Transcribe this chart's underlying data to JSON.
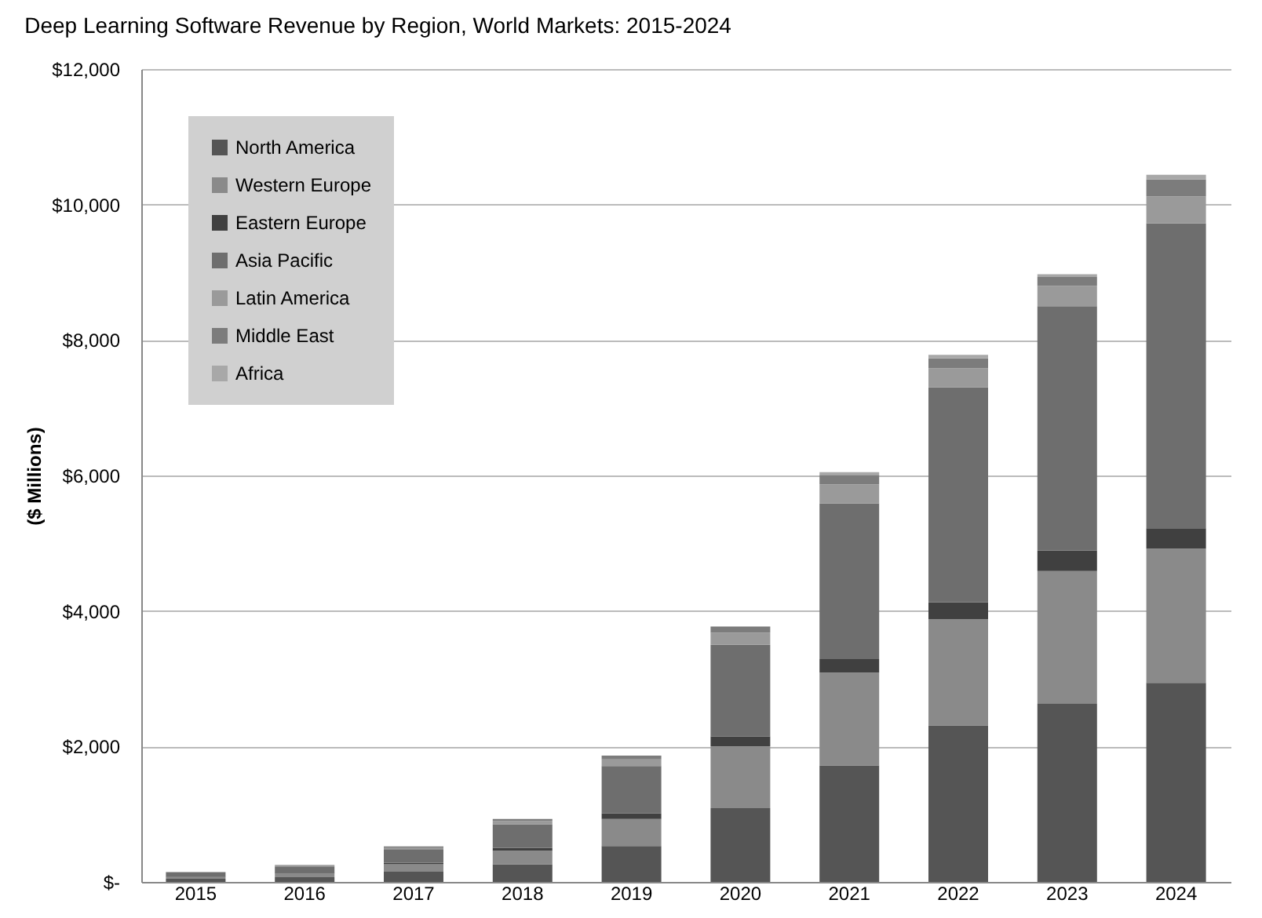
{
  "chart_data": {
    "type": "bar",
    "stacked": true,
    "title": "Deep Learning Software Revenue by Region, World Markets: 2015-2024",
    "ylabel": "($ Millions)",
    "categories": [
      "2015",
      "2016",
      "2017",
      "2018",
      "2019",
      "2020",
      "2021",
      "2022",
      "2023",
      "2024"
    ],
    "series": [
      {
        "name": "North America",
        "color": "#555555",
        "values": [
          45,
          70,
          150,
          260,
          530,
          1090,
          1720,
          2310,
          2630,
          2940
        ]
      },
      {
        "name": "Western Europe",
        "color": "#8a8a8a",
        "values": [
          30,
          55,
          110,
          200,
          400,
          910,
          1370,
          1570,
          1960,
          1980
        ]
      },
      {
        "name": "Eastern Europe",
        "color": "#404040",
        "values": [
          6,
          10,
          25,
          40,
          80,
          150,
          200,
          250,
          300,
          300
        ]
      },
      {
        "name": "Asia Pacific",
        "color": "#6e6e6e",
        "values": [
          57,
          95,
          200,
          350,
          700,
          1350,
          2300,
          3170,
          3610,
          4500
        ]
      },
      {
        "name": "Latin America",
        "color": "#9a9a9a",
        "values": [
          7,
          12,
          25,
          50,
          100,
          180,
          280,
          280,
          300,
          400
        ]
      },
      {
        "name": "Middle East",
        "color": "#7c7c7c",
        "values": [
          4,
          6,
          15,
          30,
          55,
          90,
          140,
          150,
          130,
          250
        ]
      },
      {
        "name": "Africa",
        "color": "#a8a8a8",
        "values": [
          null,
          null,
          null,
          null,
          null,
          null,
          40,
          50,
          40,
          70
        ]
      }
    ],
    "ylim": [
      0,
      12000
    ],
    "yticks": [
      {
        "value": 0,
        "label": "$-"
      },
      {
        "value": 2000,
        "label": "$2,000"
      },
      {
        "value": 4000,
        "label": "$4,000"
      },
      {
        "value": 6000,
        "label": "$6,000"
      },
      {
        "value": 8000,
        "label": "$8,000"
      },
      {
        "value": 10000,
        "label": "$10,000"
      },
      {
        "value": 12000,
        "label": "$12,000"
      }
    ],
    "grid": "y",
    "legend": "top left"
  }
}
